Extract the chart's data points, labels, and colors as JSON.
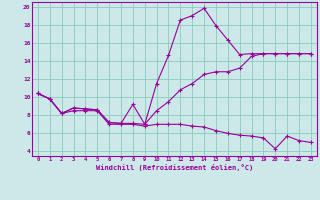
{
  "xlabel": "Windchill (Refroidissement éolien,°C)",
  "line_color": "#990099",
  "bg_color": "#cce8e8",
  "grid_color": "#88ccbb",
  "xlim": [
    -0.5,
    23.5
  ],
  "ylim": [
    3.5,
    20.5
  ],
  "yticks": [
    4,
    6,
    8,
    10,
    12,
    14,
    16,
    18,
    20
  ],
  "xticks": [
    0,
    1,
    2,
    3,
    4,
    5,
    6,
    7,
    8,
    9,
    10,
    11,
    12,
    13,
    14,
    15,
    16,
    17,
    18,
    19,
    20,
    21,
    22,
    23
  ],
  "line1_x": [
    0,
    1,
    2,
    3,
    4,
    5,
    6,
    7,
    8,
    9,
    10,
    11,
    12,
    13,
    14,
    15,
    16,
    17,
    18,
    19,
    20,
    21,
    22,
    23
  ],
  "line1_y": [
    10.4,
    9.8,
    8.2,
    8.8,
    8.7,
    8.6,
    7.2,
    7.1,
    9.2,
    7.0,
    11.5,
    14.6,
    18.5,
    19.0,
    19.8,
    17.9,
    16.3,
    14.7,
    14.8,
    14.8,
    14.8,
    14.8,
    14.8,
    14.8
  ],
  "line2_x": [
    0,
    1,
    2,
    3,
    4,
    5,
    6,
    7,
    8,
    9,
    10,
    11,
    12,
    13,
    14,
    15,
    16,
    17,
    18,
    19,
    20,
    21,
    22,
    23
  ],
  "line2_y": [
    10.4,
    9.8,
    8.2,
    8.8,
    8.7,
    8.6,
    7.2,
    7.1,
    7.1,
    7.0,
    8.5,
    9.5,
    10.8,
    11.5,
    12.5,
    12.8,
    12.8,
    13.2,
    14.5,
    14.8,
    14.8,
    14.8,
    14.8,
    14.8
  ],
  "line3_x": [
    0,
    1,
    2,
    3,
    4,
    5,
    6,
    7,
    8,
    9,
    10,
    11,
    12,
    13,
    14,
    15,
    16,
    17,
    18,
    19,
    20,
    21,
    22,
    23
  ],
  "line3_y": [
    10.4,
    9.8,
    8.2,
    8.5,
    8.5,
    8.5,
    7.0,
    7.0,
    7.0,
    6.8,
    7.0,
    7.0,
    7.0,
    6.8,
    6.7,
    6.3,
    6.0,
    5.8,
    5.7,
    5.5,
    4.3,
    5.7,
    5.2,
    5.0
  ]
}
